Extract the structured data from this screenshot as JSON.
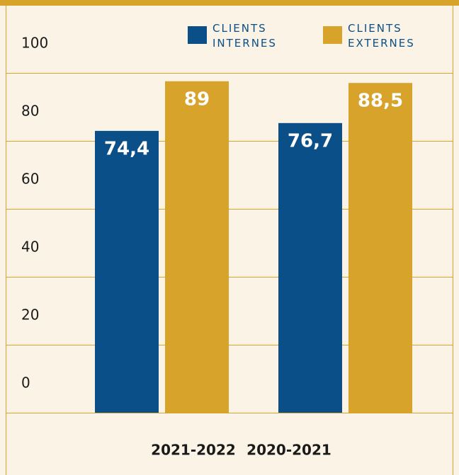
{
  "chart_data": {
    "type": "bar",
    "categories": [
      "2021-2022",
      "2020-2021"
    ],
    "series": [
      {
        "name": "CLIENTS INTERNES",
        "color": "#0a4f87",
        "values": [
          74.4,
          76.7
        ],
        "value_labels": [
          "74,4",
          "76,7"
        ]
      },
      {
        "name": "CLIENTS EXTERNES",
        "color": "#d8a32a",
        "values": [
          89,
          88.5
        ],
        "value_labels": [
          "89",
          "88,5"
        ]
      }
    ],
    "ylim": [
      0,
      100
    ],
    "yticks": [
      0,
      20,
      40,
      60,
      80,
      100
    ],
    "grid": true
  }
}
